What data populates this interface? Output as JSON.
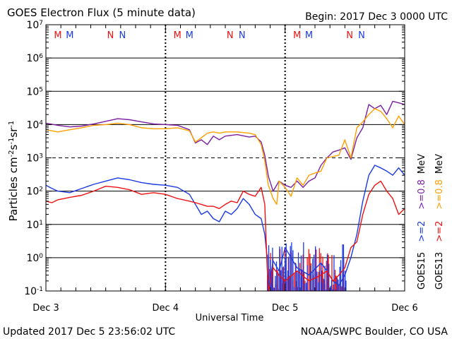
{
  "header": {
    "title": "GOES Electron Flux (5 minute data)",
    "begin": "Begin: 2017 Dec 3 0000 UTC"
  },
  "footer": {
    "updated": "Updated 2017 Dec  5 23:56:02 UTC",
    "source": "NOAA/SWPC Boulder, CO USA"
  },
  "colors": {
    "goes15_low": "#7b1fa2",
    "goes13_low": "#ff9f00",
    "goes15_high": "#1a3be6",
    "goes13_high": "#ee1111",
    "marker_m_red": "#ee1111",
    "marker_m_blue": "#1a3be6"
  },
  "markers": [
    {
      "label": "M",
      "day": 0.1,
      "color": "#ee1111"
    },
    {
      "label": "M",
      "day": 0.2,
      "color": "#1a3be6"
    },
    {
      "label": "N",
      "day": 0.54,
      "color": "#ee1111"
    },
    {
      "label": "N",
      "day": 0.64,
      "color": "#1a3be6"
    },
    {
      "label": "M",
      "day": 1.1,
      "color": "#ee1111"
    },
    {
      "label": "M",
      "day": 1.2,
      "color": "#1a3be6"
    },
    {
      "label": "N",
      "day": 1.54,
      "color": "#ee1111"
    },
    {
      "label": "N",
      "day": 1.64,
      "color": "#1a3be6"
    },
    {
      "label": "M",
      "day": 2.1,
      "color": "#ee1111"
    },
    {
      "label": "M",
      "day": 2.2,
      "color": "#1a3be6"
    },
    {
      "label": "N",
      "day": 2.54,
      "color": "#ee1111"
    },
    {
      "label": "N",
      "day": 2.64,
      "color": "#1a3be6"
    }
  ],
  "chart_data": {
    "type": "line",
    "title": "GOES Electron Flux (5 minute data)",
    "xlabel": "Universal Time",
    "ylabel": "Particles cm⁻²s⁻¹sr⁻¹",
    "xlim": [
      0,
      3
    ],
    "ylim": [
      0.1,
      10000000
    ],
    "yscale": "log",
    "x_ticks": [
      {
        "day": 0,
        "label": "Dec 3"
      },
      {
        "day": 1,
        "label": "Dec 4"
      },
      {
        "day": 2,
        "label": "Dec 5"
      },
      {
        "day": 3,
        "label": "Dec 6"
      }
    ],
    "y_ticks": [
      {
        "exp": -1,
        "label": "10",
        "sup": "-1"
      },
      {
        "exp": 0,
        "label": "10",
        "sup": "0"
      },
      {
        "exp": 1,
        "label": "10",
        "sup": "1"
      },
      {
        "exp": 2,
        "label": "10",
        "sup": "2"
      },
      {
        "exp": 3,
        "label": "10",
        "sup": "3"
      },
      {
        "exp": 4,
        "label": "10",
        "sup": "4"
      },
      {
        "exp": 5,
        "label": "10",
        "sup": "5"
      },
      {
        "exp": 6,
        "label": "10",
        "sup": "6"
      },
      {
        "exp": 7,
        "label": "10",
        "sup": "7"
      }
    ],
    "thresholds": [
      1000
    ],
    "legend": [
      {
        "group": "GOES15",
        "items": [
          {
            "text": ">=2",
            "unit": "",
            "color": "#1a3be6"
          },
          {
            "text": ">=0.8",
            "unit": "MeV",
            "color": "#7b1fa2"
          }
        ]
      },
      {
        "group": "GOES13",
        "items": [
          {
            "text": ">=2",
            "unit": "",
            "color": "#ee1111"
          },
          {
            "text": ">=0.8",
            "unit": "MeV",
            "color": "#ff9f00"
          }
        ]
      }
    ],
    "series": [
      {
        "name": "GOES15 >=0.8 MeV",
        "color": "#7b1fa2",
        "x": [
          0.0,
          0.1,
          0.2,
          0.3,
          0.4,
          0.5,
          0.6,
          0.7,
          0.8,
          0.9,
          1.0,
          1.1,
          1.2,
          1.25,
          1.3,
          1.35,
          1.4,
          1.45,
          1.5,
          1.6,
          1.7,
          1.75,
          1.8,
          1.83,
          1.86,
          1.9,
          1.95,
          2.0,
          2.05,
          2.1,
          2.15,
          2.2,
          2.25,
          2.3,
          2.35,
          2.4,
          2.45,
          2.5,
          2.55,
          2.6,
          2.65,
          2.7,
          2.75,
          2.8,
          2.85,
          2.9,
          2.95,
          3.0
        ],
        "y": [
          11000,
          9500,
          8500,
          9000,
          10500,
          12500,
          15000,
          14000,
          12000,
          10500,
          10000,
          9500,
          7000,
          2800,
          3500,
          2500,
          4500,
          3500,
          4500,
          5000,
          4200,
          4500,
          3000,
          1200,
          280,
          100,
          200,
          150,
          130,
          200,
          130,
          200,
          250,
          600,
          1000,
          1500,
          1700,
          2000,
          900,
          4000,
          8000,
          40000,
          30000,
          38000,
          20000,
          50000,
          45000,
          40000
        ]
      },
      {
        "name": "GOES13 >=0.8 MeV",
        "color": "#ff9f00",
        "x": [
          0.0,
          0.1,
          0.2,
          0.3,
          0.4,
          0.5,
          0.6,
          0.7,
          0.8,
          0.9,
          1.0,
          1.1,
          1.2,
          1.25,
          1.3,
          1.35,
          1.4,
          1.45,
          1.5,
          1.6,
          1.7,
          1.75,
          1.8,
          1.83,
          1.86,
          1.9,
          1.93,
          1.95,
          2.0,
          2.05,
          2.1,
          2.15,
          2.2,
          2.25,
          2.3,
          2.35,
          2.4,
          2.45,
          2.5,
          2.55,
          2.6,
          2.65,
          2.7,
          2.75,
          2.8,
          2.85,
          2.9,
          2.95,
          3.0
        ],
        "y": [
          7000,
          6000,
          7000,
          8000,
          9500,
          10000,
          11000,
          10000,
          8000,
          7500,
          7500,
          8000,
          6500,
          3000,
          4000,
          5500,
          6000,
          5500,
          6000,
          6000,
          5500,
          5000,
          2500,
          800,
          150,
          60,
          40,
          200,
          130,
          70,
          250,
          150,
          300,
          350,
          400,
          1000,
          1100,
          1200,
          3500,
          1000,
          8000,
          12000,
          20000,
          30000,
          25000,
          15000,
          8000,
          18000,
          10000
        ]
      },
      {
        "name": "GOES15 >=2 MeV",
        "color": "#1a3be6",
        "x": [
          0.0,
          0.05,
          0.1,
          0.2,
          0.3,
          0.4,
          0.5,
          0.6,
          0.7,
          0.8,
          0.9,
          1.0,
          1.1,
          1.2,
          1.25,
          1.3,
          1.35,
          1.4,
          1.45,
          1.5,
          1.55,
          1.6,
          1.65,
          1.7,
          1.75,
          1.8,
          1.83,
          1.85,
          1.86,
          1.9,
          1.95,
          2.0,
          2.1,
          2.2,
          2.3,
          2.35,
          2.4,
          2.45,
          2.5,
          2.55,
          2.6,
          2.65,
          2.7,
          2.75,
          2.8,
          2.85,
          2.9,
          2.95,
          3.0
        ],
        "y": [
          150,
          120,
          100,
          90,
          120,
          160,
          200,
          250,
          220,
          180,
          160,
          150,
          130,
          80,
          40,
          20,
          25,
          15,
          12,
          25,
          20,
          30,
          60,
          40,
          20,
          15,
          5,
          1,
          0.1,
          0.8,
          0.4,
          2,
          0.5,
          0.3,
          0.7,
          0.4,
          0.2,
          0.15,
          0.3,
          1,
          5,
          50,
          300,
          600,
          500,
          400,
          300,
          500,
          300
        ]
      },
      {
        "name": "GOES13 >=2 MeV",
        "color": "#ee1111",
        "x": [
          0.0,
          0.05,
          0.1,
          0.2,
          0.3,
          0.4,
          0.5,
          0.6,
          0.7,
          0.8,
          0.9,
          1.0,
          1.1,
          1.2,
          1.25,
          1.3,
          1.35,
          1.4,
          1.45,
          1.5,
          1.55,
          1.6,
          1.65,
          1.7,
          1.75,
          1.8,
          1.83,
          1.85,
          1.86,
          1.9,
          1.95,
          2.0,
          2.1,
          2.2,
          2.3,
          2.35,
          2.4,
          2.45,
          2.5,
          2.55,
          2.6,
          2.65,
          2.7,
          2.75,
          2.8,
          2.85,
          2.9,
          2.95,
          3.0
        ],
        "y": [
          50,
          45,
          55,
          65,
          75,
          100,
          140,
          130,
          110,
          80,
          90,
          80,
          60,
          50,
          45,
          40,
          35,
          35,
          30,
          40,
          50,
          45,
          100,
          80,
          70,
          130,
          40,
          0.5,
          0.1,
          0.5,
          0.3,
          0.2,
          0.4,
          0.2,
          0.3,
          0.4,
          0.2,
          0.3,
          0.5,
          2,
          3,
          20,
          80,
          150,
          200,
          100,
          60,
          20,
          30
        ]
      }
    ],
    "spikes": [
      {
        "color": "#ee1111",
        "x_from": 1.85,
        "x_to": 2.5,
        "n": 70,
        "y_floor": 0.1,
        "y_max": 2
      },
      {
        "color": "#1a3be6",
        "x_from": 1.85,
        "x_to": 2.52,
        "n": 60,
        "y_floor": 0.1,
        "y_max": 3
      }
    ]
  }
}
